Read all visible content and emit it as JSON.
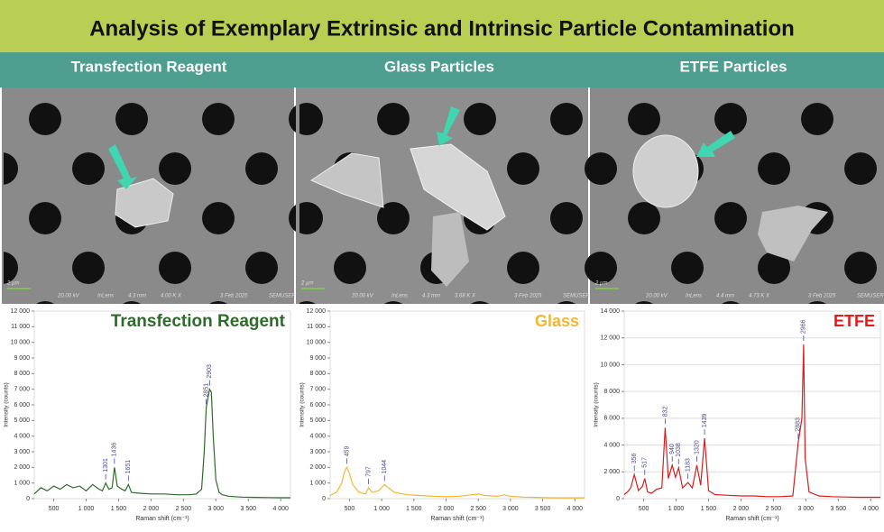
{
  "title": "Analysis of Exemplary Extrinsic and Intrinsic Particle Contamination",
  "columns": [
    "Transfection Reagent",
    "Glass Particles",
    "ETFE Particles"
  ],
  "sem_images": [
    {
      "scale": "2 µm",
      "meta": [
        "20.00 kV",
        "InLens",
        "4.3 mm",
        "4.00 K X",
        "3 Feb 2025",
        "SEMUSER"
      ]
    },
    {
      "scale": "2 µm",
      "meta": [
        "20.00 kV",
        "InLens",
        "4.3 mm",
        "3.68 K X",
        "3 Feb 2025",
        "SEMUSER"
      ]
    },
    {
      "scale": "2 µm",
      "meta": [
        "20.00 kV",
        "InLens",
        "4.4 mm",
        "4.73 K X",
        "3 Feb 2025",
        "SEMUSER"
      ]
    }
  ],
  "chart_data": [
    {
      "type": "line",
      "title": "Transfection Reagent",
      "color": "#2e6b2a",
      "title_color": "#2f6b2a",
      "xlabel": "Raman shift (cm⁻¹)",
      "ylabel": "Intensity (counts)",
      "grid": false,
      "xlim": [
        200,
        4150
      ],
      "ylim": [
        0,
        12000
      ],
      "xticks": [
        500,
        {
          "value": 1000,
          "label": "1 000"
        },
        {
          "value": 1500,
          "label": "1 500"
        },
        {
          "value": 2000,
          "label": "2 000"
        },
        {
          "value": 2500,
          "label": "2 500"
        },
        {
          "value": 3000,
          "label": "3 000"
        },
        {
          "value": 3500,
          "label": "3 500"
        },
        {
          "value": 4000,
          "label": "4 000"
        }
      ],
      "yticks": [
        0,
        1000,
        2000,
        3000,
        4000,
        5000,
        6000,
        7000,
        8000,
        9000,
        10000,
        11000,
        12000
      ],
      "ytick_labels": [
        "0",
        "1 000",
        "2 000",
        "3 000",
        "4 000",
        "5 000",
        "6 000",
        "7 000",
        "8 000",
        "9 000",
        "10 000",
        "11 000",
        "12 000"
      ],
      "x": [
        200,
        300,
        400,
        500,
        600,
        700,
        800,
        900,
        1000,
        1100,
        1200,
        1250,
        1301,
        1350,
        1400,
        1436,
        1480,
        1550,
        1600,
        1651,
        1700,
        1800,
        2000,
        2200,
        2400,
        2600,
        2700,
        2780,
        2820,
        2851,
        2880,
        2903,
        2930,
        2960,
        3000,
        3050,
        3100,
        3200,
        3400,
        3600,
        3800,
        4000,
        4150
      ],
      "values": [
        300,
        700,
        500,
        800,
        600,
        900,
        700,
        800,
        500,
        900,
        600,
        500,
        1000,
        600,
        700,
        2000,
        800,
        600,
        500,
        900,
        400,
        350,
        300,
        300,
        250,
        250,
        300,
        600,
        3000,
        5800,
        6500,
        7000,
        6800,
        4000,
        1200,
        400,
        250,
        150,
        100,
        80,
        70,
        60,
        60
      ],
      "peaks": [
        1301,
        1436,
        1651,
        2851,
        2903
      ]
    },
    {
      "type": "line",
      "title": "Glass",
      "color": "#f2b632",
      "title_color": "#f2b632",
      "xlabel": "Raman shift (cm⁻¹)",
      "ylabel": "Intensity (counts)",
      "grid": false,
      "xlim": [
        200,
        4150
      ],
      "ylim": [
        0,
        12000
      ],
      "xticks": [
        500,
        {
          "value": 1000,
          "label": "1 000"
        },
        {
          "value": 1500,
          "label": "1 500"
        },
        {
          "value": 2000,
          "label": "2 000"
        },
        {
          "value": 2500,
          "label": "2 500"
        },
        {
          "value": 3000,
          "label": "3 000"
        },
        {
          "value": 3500,
          "label": "3 500"
        },
        {
          "value": 4000,
          "label": "4 000"
        }
      ],
      "yticks": [
        0,
        1000,
        2000,
        3000,
        4000,
        5000,
        6000,
        7000,
        8000,
        9000,
        10000,
        11000,
        12000
      ],
      "ytick_labels": [
        "0",
        "1 000",
        "2 000",
        "3 000",
        "4 000",
        "5 000",
        "6 000",
        "7 000",
        "8 000",
        "9 000",
        "10 000",
        "11 000",
        "12 000"
      ],
      "x": [
        200,
        300,
        380,
        420,
        459,
        500,
        550,
        650,
        750,
        797,
        850,
        950,
        1044,
        1100,
        1200,
        1400,
        1600,
        1800,
        2000,
        2200,
        2400,
        2500,
        2600,
        2800,
        2900,
        3000,
        3200,
        3400,
        3600,
        3800,
        4000,
        4150
      ],
      "values": [
        200,
        400,
        1000,
        1700,
        2000,
        1600,
        900,
        400,
        300,
        700,
        400,
        500,
        900,
        700,
        400,
        250,
        200,
        150,
        120,
        150,
        250,
        300,
        200,
        150,
        250,
        150,
        100,
        80,
        60,
        50,
        50,
        50
      ],
      "peaks": [
        459,
        797,
        1044
      ]
    },
    {
      "type": "line",
      "title": "ETFE",
      "color": "#d81e1e",
      "title_color": "#e51b1b",
      "xlabel": "Raman shift (cm⁻¹)",
      "ylabel": "Intensity (counts)",
      "grid": true,
      "xlim": [
        200,
        4150
      ],
      "ylim": [
        0,
        14000
      ],
      "xticks": [
        500,
        {
          "value": 1000,
          "label": "1 000"
        },
        {
          "value": 1500,
          "label": "1 500"
        },
        {
          "value": 2000,
          "label": "2 000"
        },
        {
          "value": 2500,
          "label": "2 500"
        },
        {
          "value": 3000,
          "label": "3 000"
        },
        {
          "value": 3500,
          "label": "3 500"
        },
        {
          "value": 4000,
          "label": "4 000"
        }
      ],
      "yticks": [
        0,
        2000,
        4000,
        6000,
        8000,
        10000,
        12000,
        14000
      ],
      "ytick_labels": [
        "0",
        "2 000",
        "4 000",
        "6 000",
        "8 000",
        "10 000",
        "12 000",
        "14 000"
      ],
      "x": [
        200,
        250,
        300,
        356,
        420,
        480,
        517,
        560,
        620,
        700,
        780,
        832,
        880,
        940,
        990,
        1038,
        1100,
        1183,
        1250,
        1320,
        1380,
        1439,
        1500,
        1600,
        1800,
        2000,
        2200,
        2400,
        2600,
        2800,
        2883,
        2940,
        2966,
        2990,
        3050,
        3200,
        3400,
        3600,
        3800,
        4000,
        4150
      ],
      "values": [
        300,
        500,
        800,
        1800,
        600,
        900,
        1500,
        500,
        400,
        700,
        800,
        5300,
        1500,
        2500,
        1600,
        2300,
        800,
        1200,
        800,
        2500,
        1000,
        4500,
        600,
        300,
        250,
        200,
        200,
        150,
        150,
        200,
        4200,
        6000,
        11500,
        3000,
        500,
        200,
        150,
        120,
        100,
        100,
        100
      ],
      "peaks": [
        356,
        517,
        832,
        940,
        1038,
        1183,
        1320,
        1439,
        2883,
        2966
      ]
    }
  ]
}
